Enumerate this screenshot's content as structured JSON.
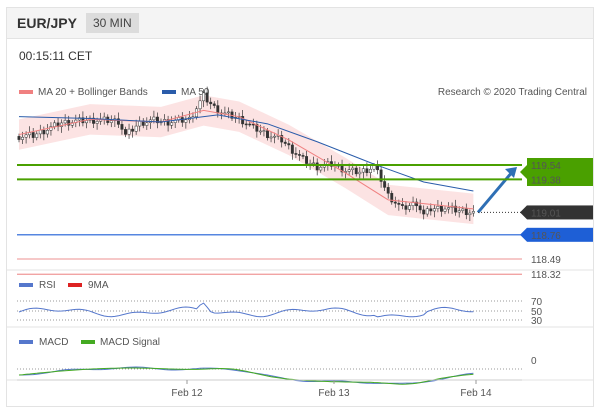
{
  "header": {
    "symbol": "EUR/JPY",
    "timeframe": "30 MIN"
  },
  "timestamp": "00:15:11 CET",
  "main_legend": {
    "items": [
      {
        "label": "MA 20 + Bollinger Bands",
        "color": "#f08080"
      },
      {
        "label": "MA 50",
        "color": "#2a5caa"
      }
    ],
    "credit": "Research © 2020 Trading Central"
  },
  "levels": [
    {
      "value": 119.54,
      "label": "119.54",
      "type": "resistance",
      "color": "#4aa000"
    },
    {
      "value": 119.38,
      "label": "119.38",
      "type": "resistance",
      "color": "#4aa000"
    },
    {
      "value": 119.01,
      "label": "119.01",
      "type": "last_price",
      "color": "#333333"
    },
    {
      "value": 118.76,
      "label": "118.76",
      "type": "pivot",
      "color": "#1e5fd6"
    },
    {
      "value": 118.49,
      "label": "118.49",
      "type": "support",
      "color": "#e03030"
    },
    {
      "value": 118.32,
      "label": "118.32",
      "type": "support",
      "color": "#e03030"
    }
  ],
  "rsi_panel": {
    "legend": [
      {
        "label": "RSI",
        "color": "#5577cc"
      },
      {
        "label": "9MA",
        "color": "#dd2222"
      }
    ],
    "levels": [
      "70",
      "50",
      "30"
    ]
  },
  "macd_panel": {
    "legend": [
      {
        "label": "MACD",
        "color": "#5577cc"
      },
      {
        "label": "MACD Signal",
        "color": "#44aa22"
      }
    ],
    "zero_label": "0"
  },
  "x_axis": {
    "labels": [
      "Feb 12",
      "Feb 13",
      "Feb 14"
    ]
  },
  "chart_data": {
    "type": "line",
    "title": "EUR/JPY",
    "ylim": [
      118.2,
      120.2
    ],
    "series": [
      {
        "name": "Price",
        "points": [
          [
            0,
            119.86
          ],
          [
            4,
            119.87
          ],
          [
            8,
            119.94
          ],
          [
            12,
            120.01
          ],
          [
            16,
            120.03
          ],
          [
            20,
            120.04
          ],
          [
            24,
            120.04
          ],
          [
            28,
            120.03
          ],
          [
            30,
            119.87
          ],
          [
            34,
            120.01
          ],
          [
            38,
            120.04
          ],
          [
            42,
            120.02
          ],
          [
            46,
            120.04
          ],
          [
            48,
            120.05
          ],
          [
            52,
            120.31
          ],
          [
            55,
            120.18
          ],
          [
            58,
            120.11
          ],
          [
            62,
            120.06
          ],
          [
            66,
            119.96
          ],
          [
            70,
            119.88
          ],
          [
            74,
            119.82
          ],
          [
            76,
            119.74
          ],
          [
            80,
            119.6
          ],
          [
            84,
            119.52
          ],
          [
            88,
            119.55
          ],
          [
            92,
            119.48
          ],
          [
            96,
            119.46
          ],
          [
            100,
            119.52
          ],
          [
            102,
            119.38
          ],
          [
            104,
            119.2
          ],
          [
            108,
            119.05
          ],
          [
            112,
            119.12
          ],
          [
            114,
            118.98
          ],
          [
            116,
            119.05
          ],
          [
            120,
            119.06
          ],
          [
            124,
            119.03
          ],
          [
            128,
            119.01
          ]
        ]
      },
      {
        "name": "MA 20",
        "points": [
          [
            0,
            119.88
          ],
          [
            20,
            120.05
          ],
          [
            40,
            120.02
          ],
          [
            52,
            120.15
          ],
          [
            62,
            120.08
          ],
          [
            76,
            119.82
          ],
          [
            92,
            119.45
          ],
          [
            104,
            119.15
          ],
          [
            128,
            119.05
          ]
        ]
      },
      {
        "name": "MA 50",
        "points": [
          [
            0,
            120.08
          ],
          [
            20,
            120.06
          ],
          [
            40,
            120.02
          ],
          [
            56,
            120.1
          ],
          [
            70,
            120.0
          ],
          [
            84,
            119.8
          ],
          [
            100,
            119.55
          ],
          [
            114,
            119.35
          ],
          [
            128,
            119.25
          ]
        ]
      }
    ],
    "forecast_arrow": {
      "from": 119.01,
      "to": 119.54
    }
  }
}
